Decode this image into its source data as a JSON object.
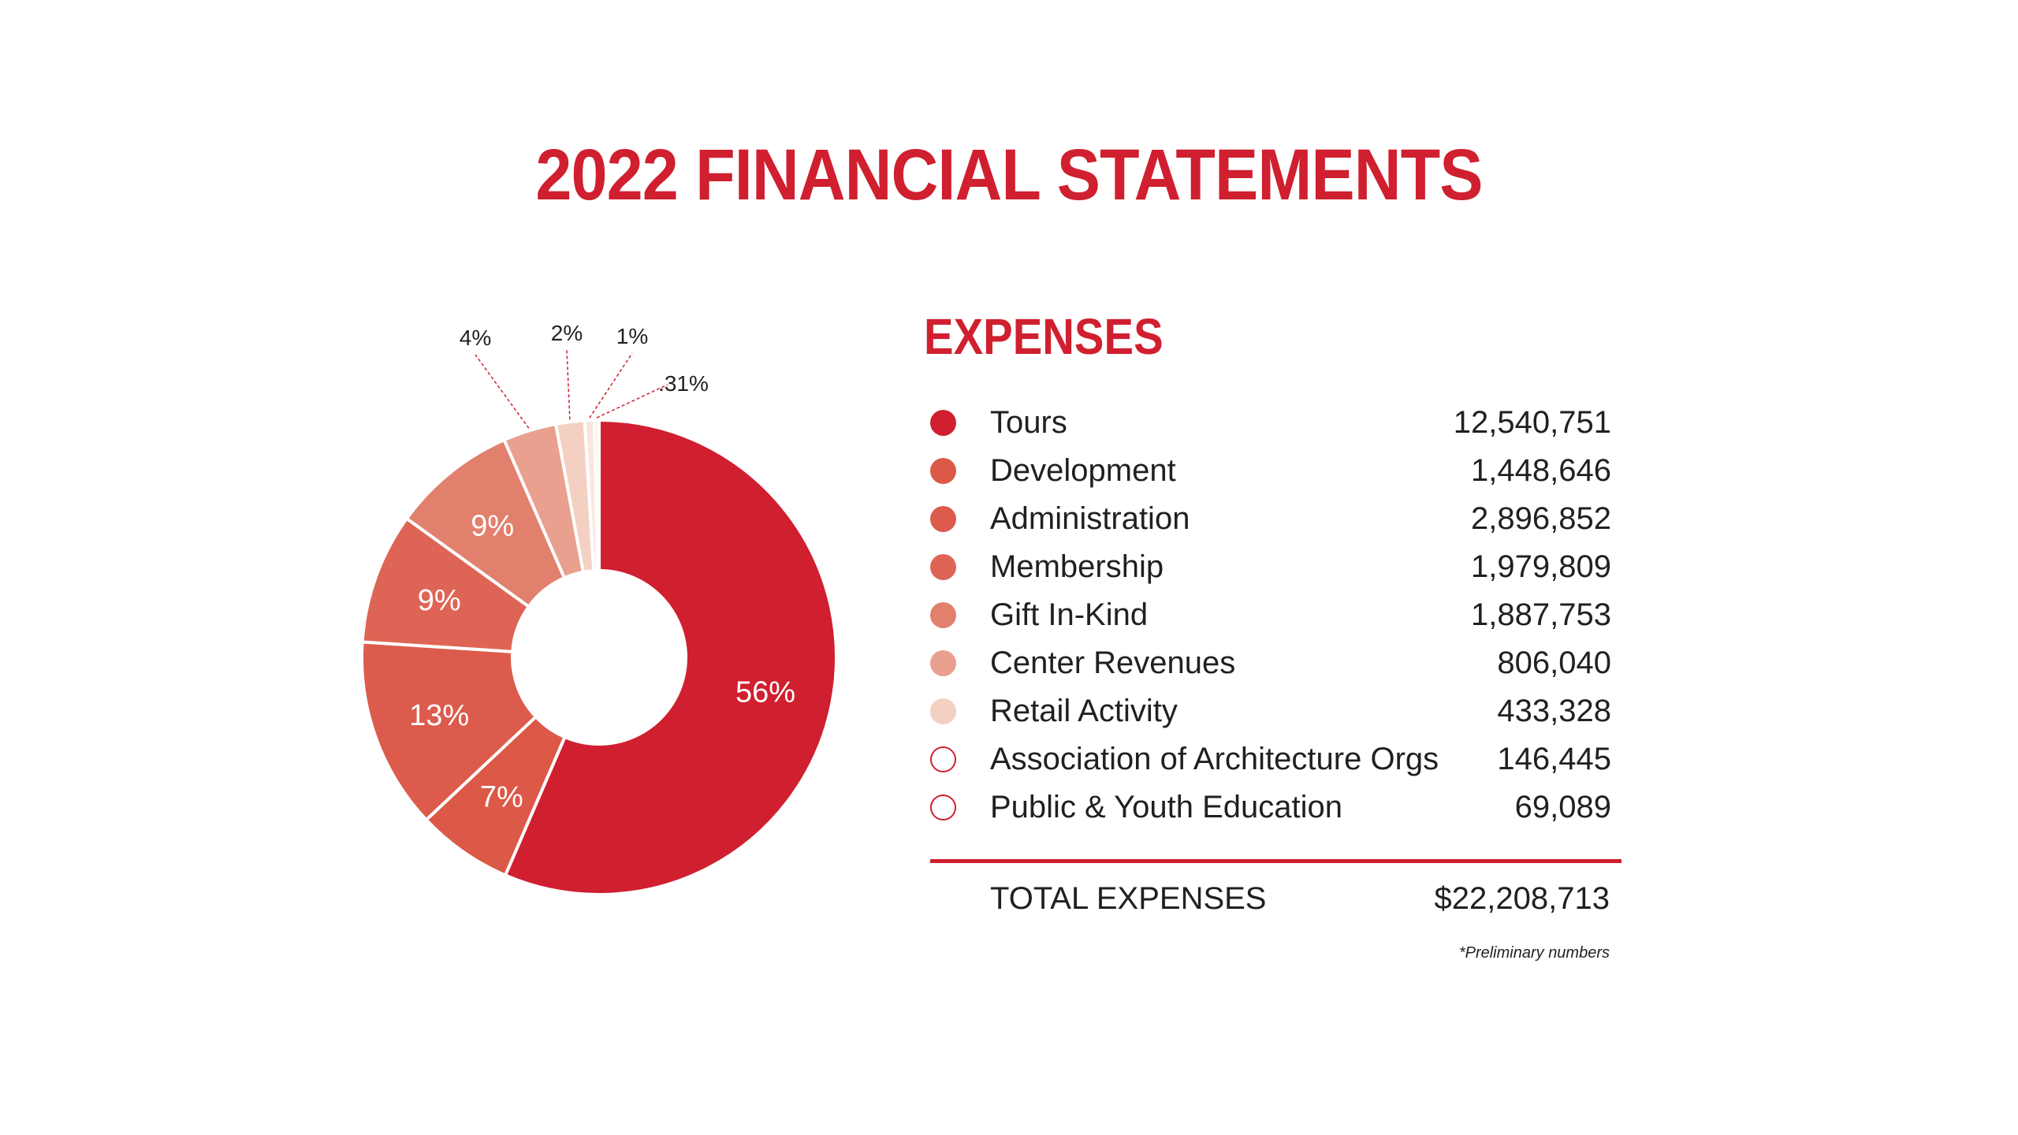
{
  "page": {
    "title": "2022 FINANCIAL STATEMENTS"
  },
  "expenses": {
    "heading": "EXPENSES",
    "items": [
      {
        "label": "Tours",
        "value": "12,540,751",
        "color": "#d01f2f"
      },
      {
        "label": "Development",
        "value": "1,448,646",
        "color": "#dc5847"
      },
      {
        "label": "Administration",
        "value": "2,896,852",
        "color": "#dc5b4c"
      },
      {
        "label": "Membership",
        "value": "1,979,809",
        "color": "#de6555"
      },
      {
        "label": "Gift In-Kind",
        "value": "1,887,753",
        "color": "#e2806e"
      },
      {
        "label": "Center Revenues",
        "value": "806,040",
        "color": "#e9a08e"
      },
      {
        "label": "Retail Activity",
        "value": "433,328",
        "color": "#f4d0c3"
      },
      {
        "label": "Association of Architecture Orgs",
        "value": "146,445",
        "color": "#ffffff"
      },
      {
        "label": "Public & Youth Education",
        "value": "69,089",
        "color": "#ffffff"
      }
    ],
    "total_label": "TOTAL EXPENSES",
    "total_value": "$22,208,713",
    "footnote": "*Preliminary numbers"
  },
  "chart_data": {
    "type": "pie",
    "donut": true,
    "slices": [
      {
        "category": "Tours",
        "value": 12540751,
        "label": "56%",
        "color": "#d01f2f"
      },
      {
        "category": "Development",
        "value": 1448646,
        "label": "7%",
        "color": "#dc5847"
      },
      {
        "category": "Administration",
        "value": 2896852,
        "label": "13%",
        "color": "#dc5b4c"
      },
      {
        "category": "Membership",
        "value": 1979809,
        "label": "9%",
        "color": "#de6555"
      },
      {
        "category": "Gift In-Kind",
        "value": 1887753,
        "label": "9%",
        "color": "#e2806e"
      },
      {
        "category": "Center Revenues",
        "value": 806040,
        "label": "4%",
        "color": "#e9a08e"
      },
      {
        "category": "Retail Activity",
        "value": 433328,
        "label": "2%",
        "color": "#f4d0c3"
      },
      {
        "category": "Association of Architecture Orgs",
        "value": 146445,
        "label": "1%",
        "color": "#f9e6df"
      },
      {
        "category": "Public & Youth Education",
        "value": 69089,
        "label": ".31%",
        "color": "#fcefea"
      }
    ],
    "total": 22208713,
    "start": "12 o'clock",
    "direction": "clockwise",
    "border_color": "#ffffff",
    "inside_label_color": "#ffffff",
    "outside_label_color": "#231f20",
    "leader_line_color": "#d01f2f"
  }
}
